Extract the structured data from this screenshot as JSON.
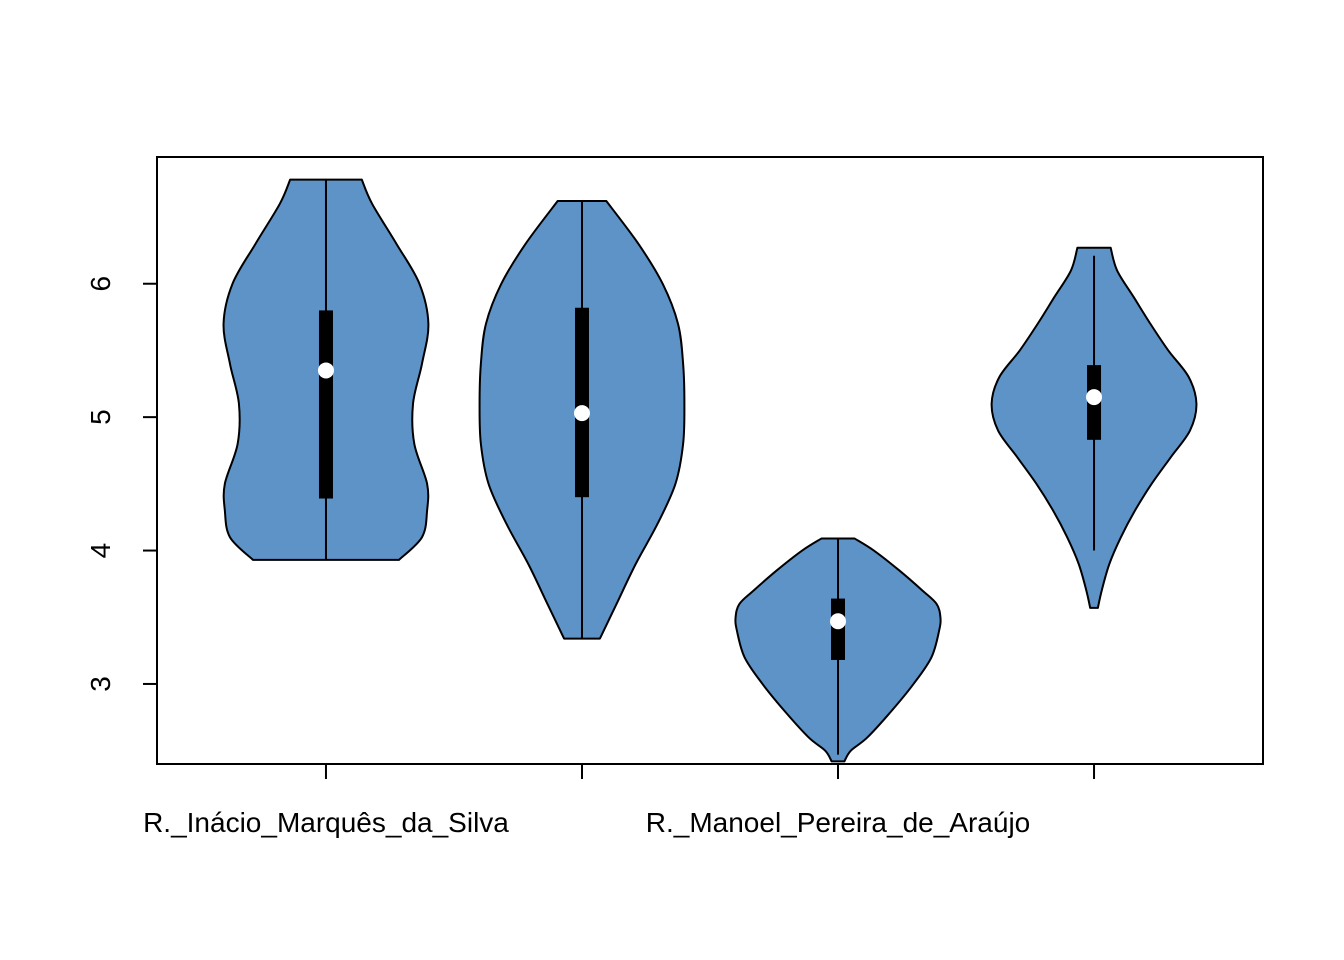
{
  "chart_data": {
    "type": "violin",
    "title": "",
    "xlabel": "",
    "ylabel": "",
    "ylim": [
      2.4,
      6.95
    ],
    "y_ticks": [
      3,
      4,
      5,
      6
    ],
    "y_tick_labels": [
      "3",
      "4",
      "5",
      "6"
    ],
    "fill_color": "#5E93C8",
    "box_color": "#000000",
    "median_color": "#ffffff",
    "categories": [
      "R._Inácio_Marquês_da_Silva",
      "",
      "R._Manoel_Pereira_de_Araújo",
      ""
    ],
    "shown_category_labels": [
      "R._Inácio_Marquês_da_Silva",
      "R._Manoel_Pereira_de_Araújo"
    ],
    "series": [
      {
        "min": 3.93,
        "q1": 4.39,
        "median": 5.35,
        "q3": 5.8,
        "max": 6.78,
        "whisker_low": 3.93,
        "whisker_high": 6.78,
        "density": [
          [
            3.93,
            0.57
          ],
          [
            4.1,
            0.75
          ],
          [
            4.3,
            0.79
          ],
          [
            4.5,
            0.79
          ],
          [
            4.8,
            0.69
          ],
          [
            5.1,
            0.68
          ],
          [
            5.4,
            0.75
          ],
          [
            5.7,
            0.8
          ],
          [
            6.0,
            0.73
          ],
          [
            6.3,
            0.55
          ],
          [
            6.6,
            0.36
          ],
          [
            6.78,
            0.28
          ]
        ]
      },
      {
        "min": 3.34,
        "q1": 4.4,
        "median": 5.03,
        "q3": 5.82,
        "max": 6.62,
        "whisker_low": 3.34,
        "whisker_high": 6.62,
        "density": [
          [
            3.34,
            0.14
          ],
          [
            3.6,
            0.27
          ],
          [
            3.9,
            0.42
          ],
          [
            4.2,
            0.59
          ],
          [
            4.5,
            0.73
          ],
          [
            4.8,
            0.79
          ],
          [
            5.1,
            0.8
          ],
          [
            5.4,
            0.79
          ],
          [
            5.7,
            0.75
          ],
          [
            6.0,
            0.63
          ],
          [
            6.3,
            0.44
          ],
          [
            6.62,
            0.19
          ]
        ]
      },
      {
        "min": 2.47,
        "q1": 3.18,
        "median": 3.47,
        "q3": 3.64,
        "max": 4.09,
        "whisker_low": 2.47,
        "whisker_high": 4.09,
        "density": [
          [
            2.42,
            0.05
          ],
          [
            2.5,
            0.1
          ],
          [
            2.6,
            0.23
          ],
          [
            2.8,
            0.42
          ],
          [
            3.0,
            0.59
          ],
          [
            3.2,
            0.73
          ],
          [
            3.4,
            0.79
          ],
          [
            3.5,
            0.8
          ],
          [
            3.6,
            0.77
          ],
          [
            3.7,
            0.66
          ],
          [
            3.85,
            0.48
          ],
          [
            4.0,
            0.28
          ],
          [
            4.09,
            0.13
          ]
        ]
      },
      {
        "min": 4.0,
        "q1": 4.83,
        "median": 5.15,
        "q3": 5.39,
        "max": 6.21,
        "whisker_low": 4.0,
        "whisker_high": 6.21,
        "density": [
          [
            3.57,
            0.03
          ],
          [
            3.7,
            0.06
          ],
          [
            3.9,
            0.12
          ],
          [
            4.1,
            0.21
          ],
          [
            4.3,
            0.32
          ],
          [
            4.5,
            0.45
          ],
          [
            4.7,
            0.6
          ],
          [
            4.9,
            0.75
          ],
          [
            5.1,
            0.8
          ],
          [
            5.3,
            0.74
          ],
          [
            5.5,
            0.58
          ],
          [
            5.7,
            0.44
          ],
          [
            5.9,
            0.31
          ],
          [
            6.1,
            0.18
          ],
          [
            6.27,
            0.13
          ]
        ]
      }
    ]
  }
}
